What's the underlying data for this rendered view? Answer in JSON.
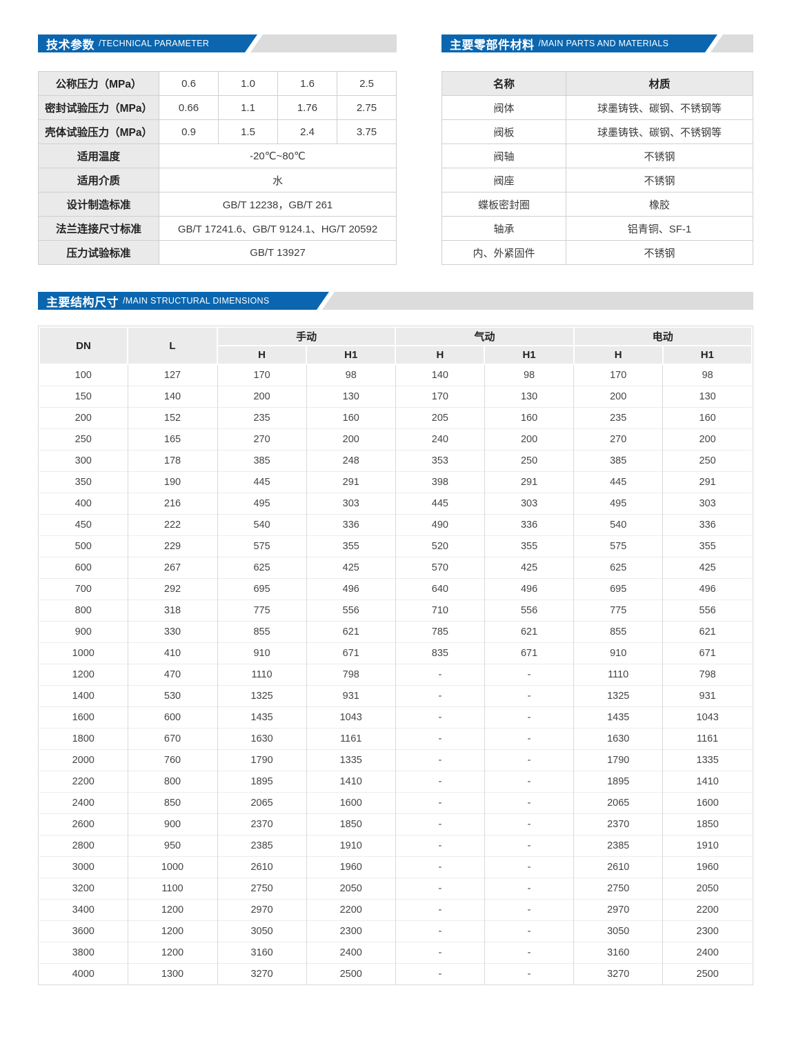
{
  "colors": {
    "accent_blue": "#0b66af",
    "banner_gray": "#dcdcdc",
    "table_header_gray": "#eaeaea",
    "border_gray": "#cfcfcf",
    "text_dark": "#333333"
  },
  "banners": {
    "technical": {
      "zh": "技术参数",
      "en": "/TECHNICAL PARAMETER"
    },
    "materials": {
      "zh": "主要零部件材料",
      "en": "/MAIN PARTS AND MATERIALS"
    },
    "dimensions": {
      "zh": "主要结构尺寸",
      "en": "/MAIN STRUCTURAL DIMENSIONS"
    }
  },
  "technical_table": {
    "rows": [
      {
        "label": "公称压力（MPa）",
        "values": [
          "0.6",
          "1.0",
          "1.6",
          "2.5"
        ]
      },
      {
        "label": "密封试验压力（MPa）",
        "values": [
          "0.66",
          "1.1",
          "1.76",
          "2.75"
        ]
      },
      {
        "label": "壳体试验压力（MPa）",
        "values": [
          "0.9",
          "1.5",
          "2.4",
          "3.75"
        ]
      },
      {
        "label": "适用温度",
        "span": "-20℃~80℃"
      },
      {
        "label": "适用介质",
        "span": "水"
      },
      {
        "label": "设计制造标准",
        "span": "GB/T 12238，GB/T 261"
      },
      {
        "label": "法兰连接尺寸标准",
        "span": "GB/T 17241.6、GB/T 9124.1、HG/T 20592"
      },
      {
        "label": "压力试验标准",
        "span": "GB/T 13927"
      }
    ]
  },
  "materials_table": {
    "headers": [
      "名称",
      "材质"
    ],
    "rows": [
      [
        "阀体",
        "球墨铸铁、碳钢、不锈钢等"
      ],
      [
        "阀板",
        "球墨铸铁、碳钢、不锈钢等"
      ],
      [
        "阀轴",
        "不锈钢"
      ],
      [
        "阀座",
        "不锈钢"
      ],
      [
        "蝶板密封圈",
        "橡胶"
      ],
      [
        "轴承",
        "铝青铜、SF-1"
      ],
      [
        "内、外紧固件",
        "不锈钢"
      ]
    ]
  },
  "dimensions_table": {
    "col_headers": {
      "dn": "DN",
      "l": "L",
      "manual": "手动",
      "pneumatic": "气动",
      "electric": "电动",
      "h": "H",
      "h1": "H1"
    },
    "rows": [
      [
        "100",
        "127",
        "170",
        "98",
        "140",
        "98",
        "170",
        "98"
      ],
      [
        "150",
        "140",
        "200",
        "130",
        "170",
        "130",
        "200",
        "130"
      ],
      [
        "200",
        "152",
        "235",
        "160",
        "205",
        "160",
        "235",
        "160"
      ],
      [
        "250",
        "165",
        "270",
        "200",
        "240",
        "200",
        "270",
        "200"
      ],
      [
        "300",
        "178",
        "385",
        "248",
        "353",
        "250",
        "385",
        "250"
      ],
      [
        "350",
        "190",
        "445",
        "291",
        "398",
        "291",
        "445",
        "291"
      ],
      [
        "400",
        "216",
        "495",
        "303",
        "445",
        "303",
        "495",
        "303"
      ],
      [
        "450",
        "222",
        "540",
        "336",
        "490",
        "336",
        "540",
        "336"
      ],
      [
        "500",
        "229",
        "575",
        "355",
        "520",
        "355",
        "575",
        "355"
      ],
      [
        "600",
        "267",
        "625",
        "425",
        "570",
        "425",
        "625",
        "425"
      ],
      [
        "700",
        "292",
        "695",
        "496",
        "640",
        "496",
        "695",
        "496"
      ],
      [
        "800",
        "318",
        "775",
        "556",
        "710",
        "556",
        "775",
        "556"
      ],
      [
        "900",
        "330",
        "855",
        "621",
        "785",
        "621",
        "855",
        "621"
      ],
      [
        "1000",
        "410",
        "910",
        "671",
        "835",
        "671",
        "910",
        "671"
      ],
      [
        "1200",
        "470",
        "1110",
        "798",
        "-",
        "-",
        "1110",
        "798"
      ],
      [
        "1400",
        "530",
        "1325",
        "931",
        "-",
        "-",
        "1325",
        "931"
      ],
      [
        "1600",
        "600",
        "1435",
        "1043",
        "-",
        "-",
        "1435",
        "1043"
      ],
      [
        "1800",
        "670",
        "1630",
        "1161",
        "-",
        "-",
        "1630",
        "1161"
      ],
      [
        "2000",
        "760",
        "1790",
        "1335",
        "-",
        "-",
        "1790",
        "1335"
      ],
      [
        "2200",
        "800",
        "1895",
        "1410",
        "-",
        "-",
        "1895",
        "1410"
      ],
      [
        "2400",
        "850",
        "2065",
        "1600",
        "-",
        "-",
        "2065",
        "1600"
      ],
      [
        "2600",
        "900",
        "2370",
        "1850",
        "-",
        "-",
        "2370",
        "1850"
      ],
      [
        "2800",
        "950",
        "2385",
        "1910",
        "-",
        "-",
        "2385",
        "1910"
      ],
      [
        "3000",
        "1000",
        "2610",
        "1960",
        "-",
        "-",
        "2610",
        "1960"
      ],
      [
        "3200",
        "1100",
        "2750",
        "2050",
        "-",
        "-",
        "2750",
        "2050"
      ],
      [
        "3400",
        "1200",
        "2970",
        "2200",
        "-",
        "-",
        "2970",
        "2200"
      ],
      [
        "3600",
        "1200",
        "3050",
        "2300",
        "-",
        "-",
        "3050",
        "2300"
      ],
      [
        "3800",
        "1200",
        "3160",
        "2400",
        "-",
        "-",
        "3160",
        "2400"
      ],
      [
        "4000",
        "1300",
        "3270",
        "2500",
        "-",
        "-",
        "3270",
        "2500"
      ]
    ]
  }
}
